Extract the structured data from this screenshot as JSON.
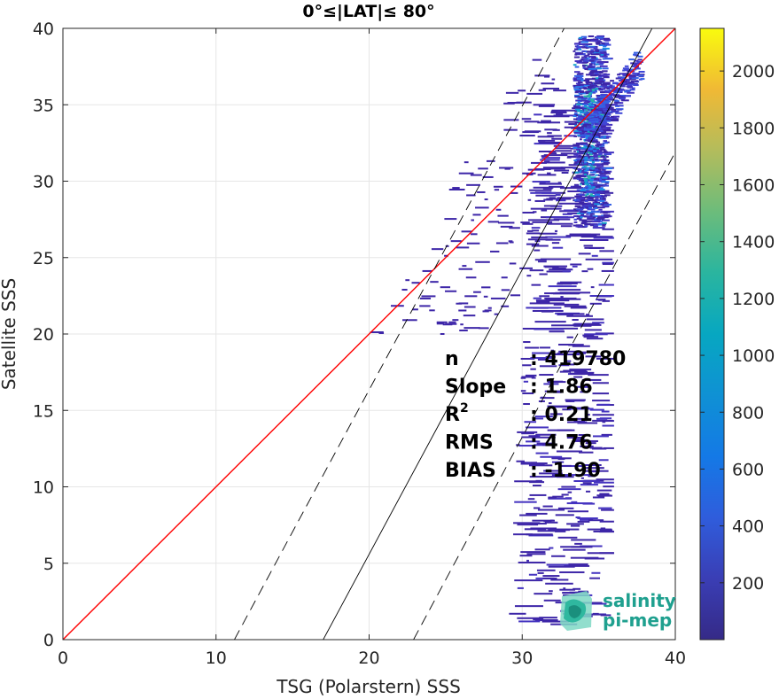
{
  "chart_data": {
    "type": "heatmap",
    "title": "0°≤|LAT|≤ 80°",
    "xlabel": "TSG (Polarstern) SSS",
    "ylabel": "Satellite SSS",
    "xlim": [
      0,
      40
    ],
    "ylim": [
      0,
      40
    ],
    "xticks": [
      0,
      10,
      20,
      30,
      40
    ],
    "yticks": [
      0,
      5,
      10,
      15,
      20,
      25,
      30,
      35,
      40
    ],
    "grid": true,
    "colorbar": {
      "colormap": "parula",
      "range": [
        0,
        2150
      ],
      "ticks": [
        200,
        400,
        600,
        800,
        1000,
        1200,
        1400,
        1600,
        1800,
        2000
      ]
    },
    "lines": [
      {
        "name": "1:1",
        "color": "#ff0000",
        "style": "solid",
        "x": [
          0,
          40
        ],
        "y": [
          0,
          40
        ]
      },
      {
        "name": "fit",
        "color": "#000000",
        "style": "solid",
        "x": [
          17,
          39.5
        ],
        "y": [
          0,
          41.9
        ]
      },
      {
        "name": "fit+RMS",
        "color": "#000000",
        "style": "dashed",
        "x": [
          11.2,
          36.4
        ],
        "y": [
          0,
          46.8
        ]
      },
      {
        "name": "fit-RMS",
        "color": "#000000",
        "style": "dashed",
        "x": [
          22.9,
          40
        ],
        "y": [
          0,
          31.9
        ]
      }
    ],
    "density": {
      "core_x": [
        33.5,
        35.2
      ],
      "core_y": [
        28,
        38
      ],
      "notes": "dense cluster at TSG 33.5-35.5, satellite 28-38; sparse horizontal streaks down to satellite ~1"
    },
    "stats": [
      {
        "label": "n",
        "sup": "",
        "value": ": 419780"
      },
      {
        "label": "Slope",
        "sup": "",
        "value": ": 1.86"
      },
      {
        "label": "R",
        "sup": "2",
        "value": ": 0.21"
      },
      {
        "label": "RMS",
        "sup": "",
        "value": ": 4.76"
      },
      {
        "label": "BIAS",
        "sup": "",
        "value": ": -1.90"
      }
    ]
  },
  "logo": {
    "line1": "salinity",
    "line2": "pi-mep"
  },
  "colors": {
    "one_to_one": "#ff0000",
    "logo": "#1fa08f"
  }
}
